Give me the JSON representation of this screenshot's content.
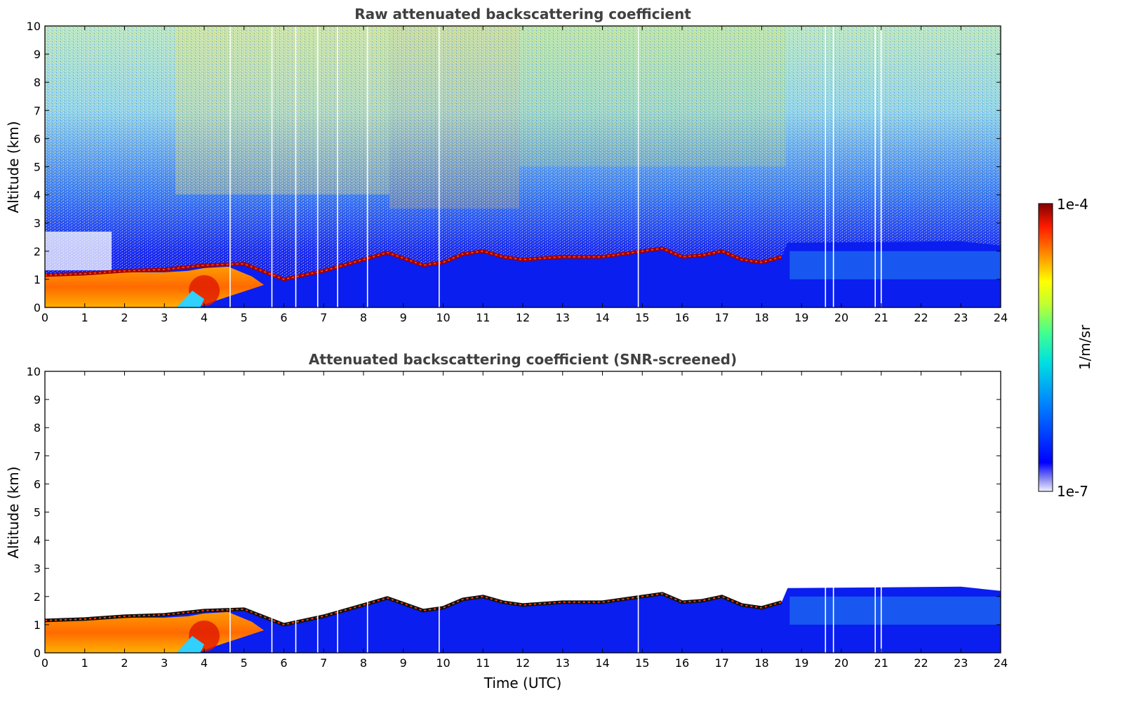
{
  "chart_data": [
    {
      "type": "heatmap",
      "title": "Raw attenuated backscattering coefficient",
      "xlabel": "",
      "ylabel": "Altitude (km)",
      "xlim": [
        0,
        24
      ],
      "ylim": [
        0,
        10
      ],
      "x_ticks": [
        "0",
        "1",
        "2",
        "3",
        "4",
        "5",
        "6",
        "7",
        "8",
        "9",
        "10",
        "11",
        "12",
        "13",
        "14",
        "15",
        "16",
        "17",
        "18",
        "19",
        "20",
        "21",
        "22",
        "23",
        "24"
      ],
      "y_ticks": [
        "0",
        "1",
        "2",
        "3",
        "4",
        "5",
        "6",
        "7",
        "8",
        "9",
        "10"
      ],
      "screened": false,
      "colormap": "jet",
      "color_scale": "log",
      "cloud_base_km": {
        "time": [
          0,
          1,
          2,
          3,
          4,
          5,
          6,
          7,
          8,
          8.6,
          9.5,
          10,
          10.5,
          11,
          11.5,
          12,
          13,
          14,
          15,
          15.5,
          16,
          16.5,
          17,
          17.5,
          18,
          18.5
        ],
        "altitude": [
          1.15,
          1.2,
          1.3,
          1.35,
          1.5,
          1.55,
          1.0,
          1.3,
          1.7,
          1.95,
          1.5,
          1.6,
          1.9,
          2.0,
          1.8,
          1.7,
          1.8,
          1.8,
          2.0,
          2.1,
          1.8,
          1.85,
          2.0,
          1.7,
          1.6,
          1.8
        ]
      },
      "missing_profiles_utc": [
        4.65,
        5.7,
        6.3,
        6.85,
        7.35,
        8.1,
        9.9,
        14.9,
        19.6,
        19.8,
        20.85,
        21.0
      ]
    },
    {
      "type": "heatmap",
      "title": "Attenuated backscattering coefficient (SNR-screened)",
      "xlabel": "Time (UTC)",
      "ylabel": "Altitude (km)",
      "xlim": [
        0,
        24
      ],
      "ylim": [
        0,
        10
      ],
      "x_ticks": [
        "0",
        "1",
        "2",
        "3",
        "4",
        "5",
        "6",
        "7",
        "8",
        "9",
        "10",
        "11",
        "12",
        "13",
        "14",
        "15",
        "16",
        "17",
        "18",
        "19",
        "20",
        "21",
        "22",
        "23",
        "24"
      ],
      "y_ticks": [
        "0",
        "1",
        "2",
        "3",
        "4",
        "5",
        "6",
        "7",
        "8",
        "9",
        "10"
      ],
      "screened": true,
      "colormap": "jet",
      "color_scale": "log",
      "cloud_base_km": {
        "time": [
          0,
          1,
          2,
          3,
          4,
          5,
          6,
          7,
          8,
          8.6,
          9.5,
          10,
          10.5,
          11,
          11.5,
          12,
          13,
          14,
          15,
          15.5,
          16,
          16.5,
          17,
          17.5,
          18,
          18.5
        ],
        "altitude": [
          1.15,
          1.2,
          1.3,
          1.35,
          1.5,
          1.55,
          1.0,
          1.3,
          1.7,
          1.95,
          1.5,
          1.6,
          1.9,
          2.0,
          1.8,
          1.7,
          1.8,
          1.8,
          2.0,
          2.1,
          1.8,
          1.85,
          2.0,
          1.7,
          1.6,
          1.8
        ]
      },
      "missing_profiles_utc": [
        4.65,
        5.7,
        6.3,
        6.85,
        7.35,
        8.1,
        9.9,
        14.9,
        19.6,
        19.8,
        20.85,
        21.0
      ]
    }
  ],
  "colorbar": {
    "max_label": "1e-4",
    "min_label": "1e-7",
    "unit_label": "1/m/sr",
    "vmin": 1e-07,
    "vmax": 0.0001
  }
}
